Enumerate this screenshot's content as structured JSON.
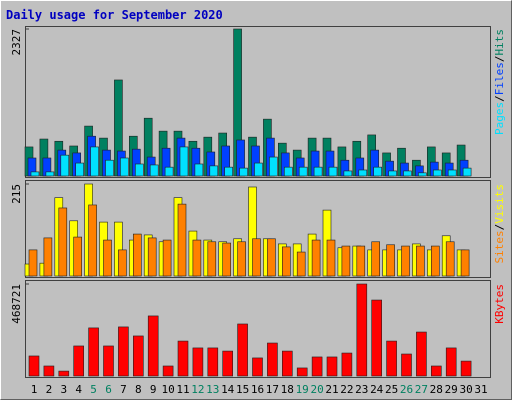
{
  "chart_data": [
    {
      "type": "bar",
      "title": "Daily usage for September 2020",
      "ylim": [
        0,
        2327
      ],
      "yticks": [
        2327
      ],
      "legend_separator": "/",
      "series": [
        {
          "name": "Hits",
          "color": "#008060",
          "values": [
            460,
            585,
            550,
            475,
            790,
            600,
            1520,
            630,
            915,
            710,
            710,
            550,
            615,
            680,
            2327,
            615,
            900,
            520,
            410,
            600,
            600,
            460,
            550,
            650,
            365,
            440,
            250,
            460,
            365,
            490,
            null
          ]
        },
        {
          "name": "Files",
          "color": "#0040ff",
          "values": [
            285,
            285,
            410,
            365,
            630,
            410,
            395,
            425,
            300,
            440,
            600,
            440,
            380,
            475,
            570,
            475,
            600,
            365,
            285,
            395,
            395,
            250,
            285,
            410,
            235,
            205,
            160,
            220,
            205,
            250,
            null
          ]
        },
        {
          "name": "Pages",
          "color": "#00e0ff",
          "values": [
            65,
            65,
            330,
            205,
            460,
            250,
            285,
            190,
            175,
            140,
            460,
            190,
            160,
            140,
            125,
            205,
            300,
            140,
            140,
            140,
            140,
            80,
            95,
            140,
            80,
            80,
            50,
            95,
            95,
            125,
            null
          ]
        }
      ]
    },
    {
      "type": "bar",
      "ylim": [
        0,
        215
      ],
      "yticks": [
        215
      ],
      "legend_separator": "/",
      "series": [
        {
          "name": "Visits",
          "color": "#ffff00",
          "values": [
            28,
            30,
            183,
            129,
            215,
            126,
            126,
            84,
            96,
            80,
            183,
            105,
            84,
            80,
            87,
            208,
            87,
            75,
            75,
            98,
            154,
            66,
            70,
            61,
            61,
            61,
            75,
            61,
            94,
            61,
            null
          ]
        },
        {
          "name": "Sites",
          "color": "#ff8000",
          "values": [
            61,
            89,
            159,
            91,
            166,
            84,
            61,
            98,
            89,
            84,
            168,
            84,
            80,
            77,
            80,
            87,
            87,
            68,
            56,
            84,
            84,
            70,
            70,
            80,
            73,
            70,
            70,
            70,
            80,
            61,
            null
          ]
        }
      ]
    },
    {
      "type": "bar",
      "ylim": [
        0,
        468721
      ],
      "yticks": [
        468721
      ],
      "categories": [
        "1",
        "2",
        "3",
        "4",
        "5",
        "6",
        "7",
        "8",
        "9",
        "10",
        "11",
        "12",
        "13",
        "14",
        "15",
        "16",
        "17",
        "18",
        "19",
        "20",
        "21",
        "22",
        "23",
        "24",
        "25",
        "26",
        "27",
        "28",
        "29",
        "30",
        "31"
      ],
      "highlight_categories": [
        "5",
        "6",
        "12",
        "13",
        "19",
        "20",
        "26",
        "27"
      ],
      "highlight_color": "#008060",
      "series": [
        {
          "name": "KBytes",
          "color": "#ff0000",
          "values": [
            102000,
            51000,
            25000,
            153000,
            245000,
            153000,
            250000,
            204000,
            306000,
            51000,
            178000,
            143000,
            143000,
            127000,
            265000,
            92000,
            168000,
            127000,
            41000,
            97000,
            97000,
            117000,
            468721,
            387000,
            178000,
            112000,
            224000,
            51000,
            143000,
            76000,
            null
          ]
        }
      ]
    }
  ]
}
